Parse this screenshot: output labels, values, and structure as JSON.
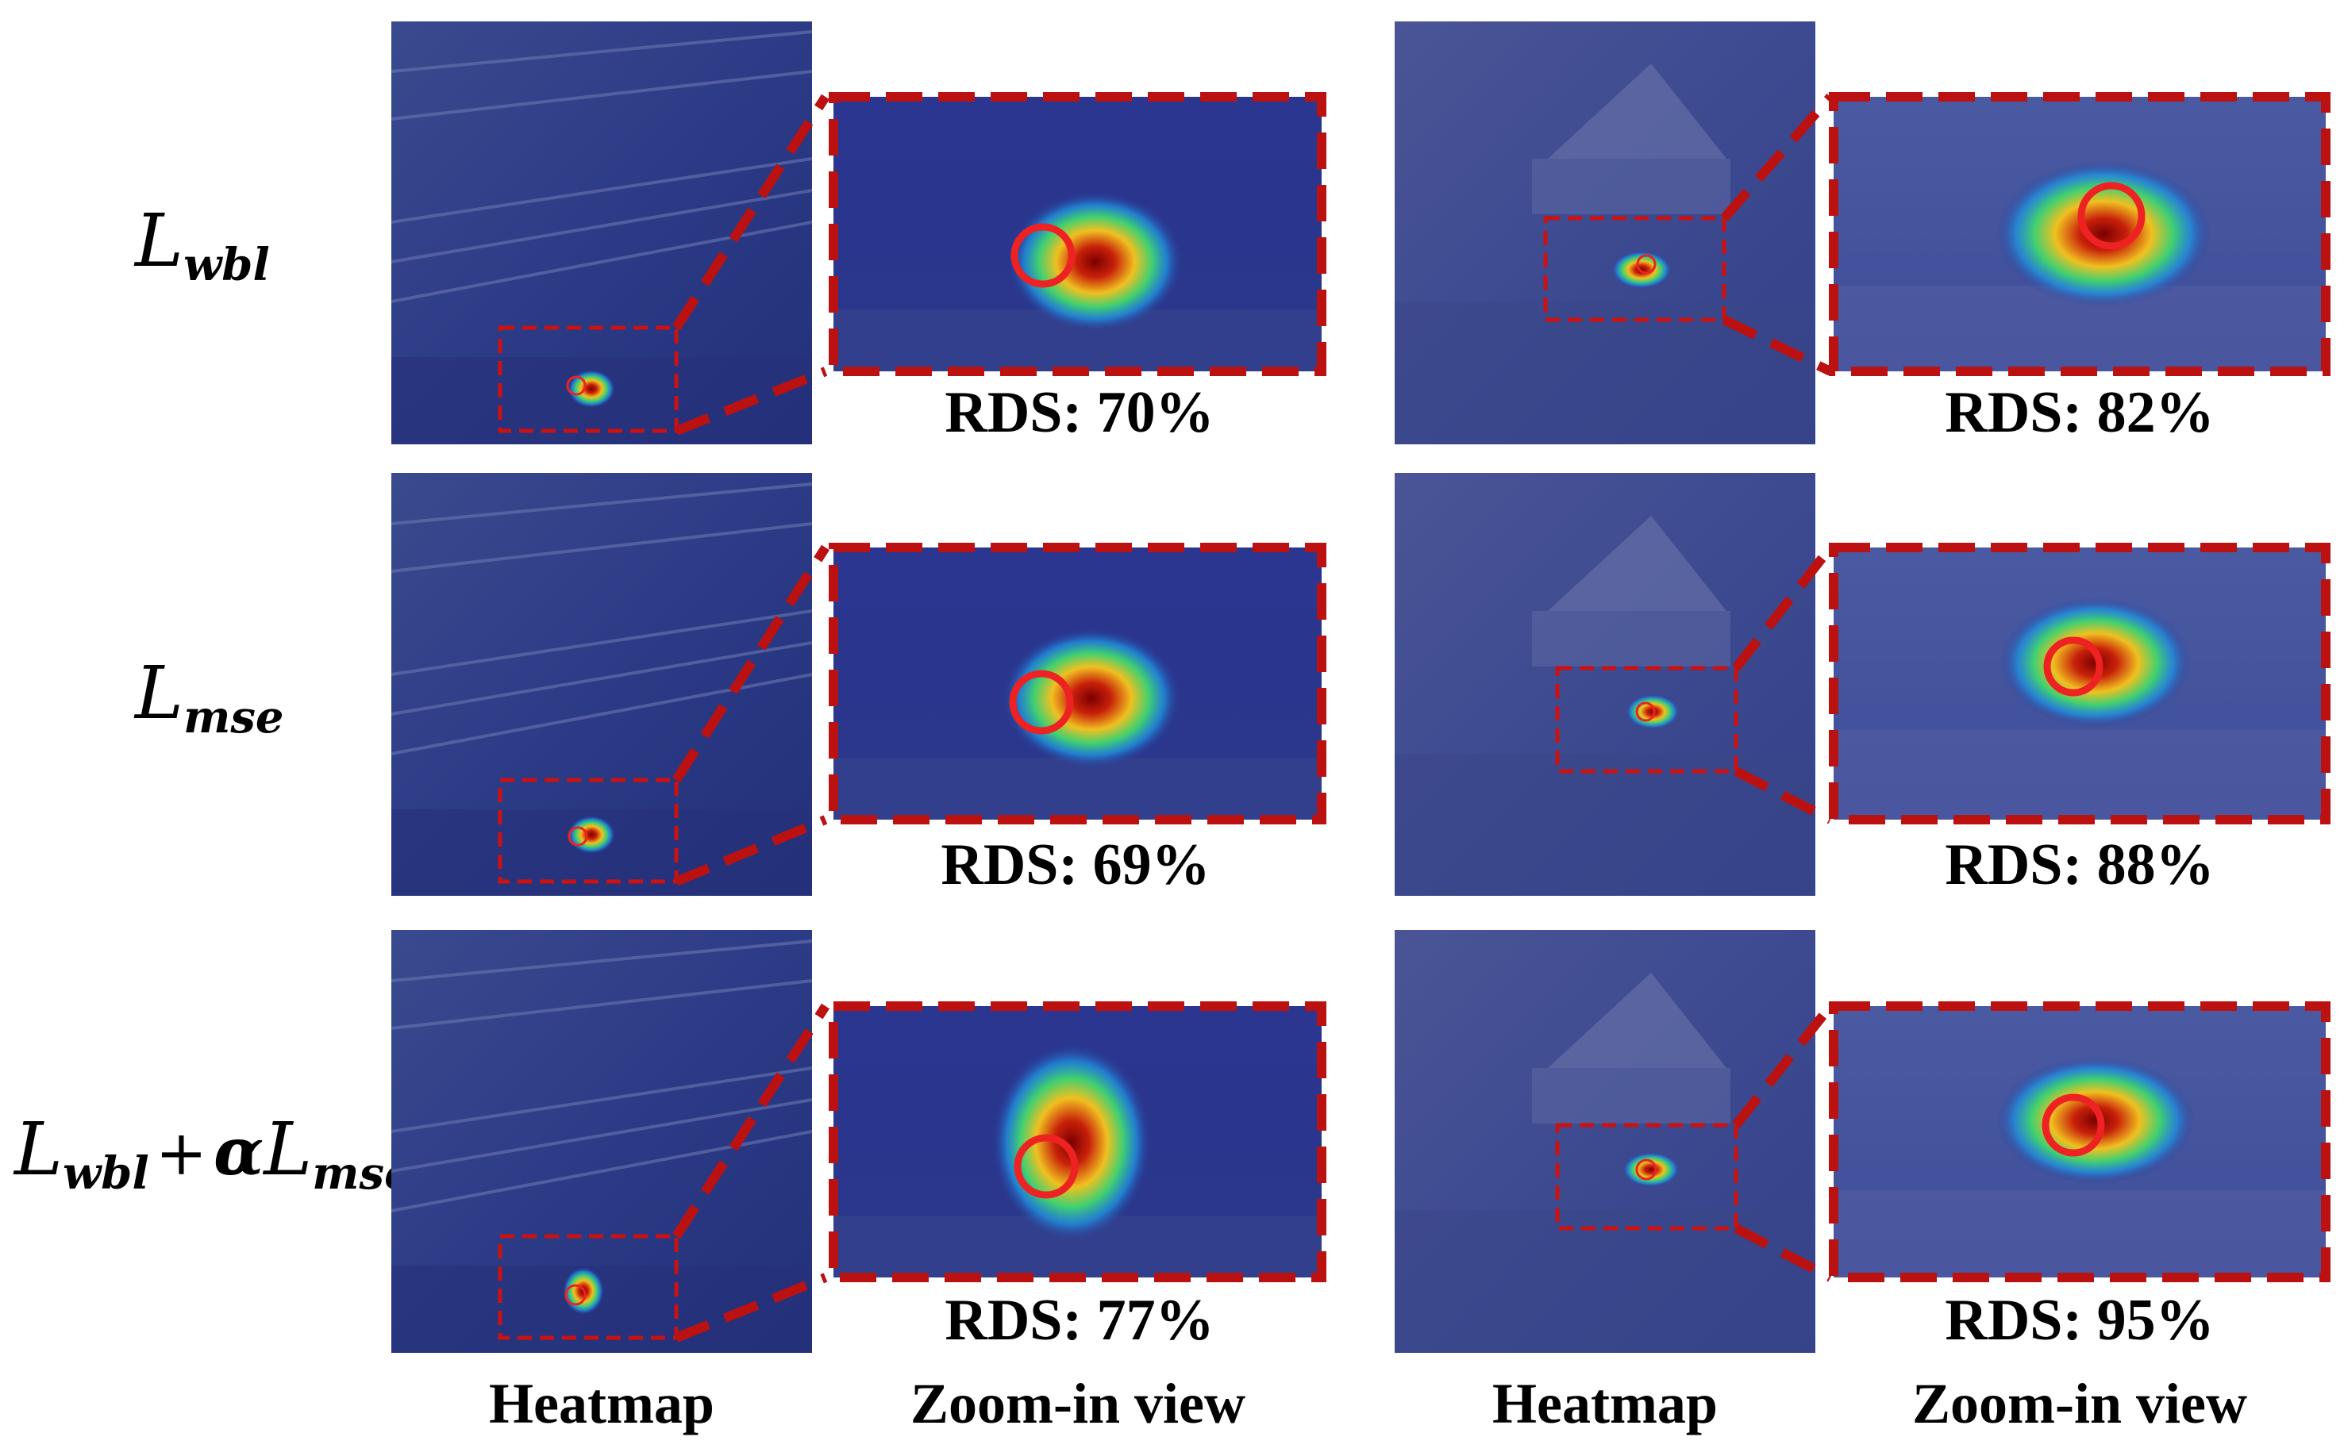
{
  "rows": [
    {
      "label": {
        "main": "L",
        "sub": "wbl"
      },
      "rds_left": "RDS: 70%",
      "rds_right": "RDS: 82%"
    },
    {
      "label": {
        "main": "L",
        "sub": "mse"
      },
      "rds_left": "RDS: 69%",
      "rds_right": "RDS: 88%"
    },
    {
      "label": {
        "main1": "L",
        "sub1": "wbl",
        "op": "+",
        "alpha": "α",
        "main2": "L",
        "sub2": "mse"
      },
      "rds_left": "RDS: 77%",
      "rds_right": "RDS: 95%"
    }
  ],
  "columns": {
    "left_heatmap": "Heatmap",
    "left_zoom": "Zoom-in view",
    "right_heatmap": "Heatmap",
    "right_zoom": "Zoom-in view"
  },
  "colors": {
    "background_overlay": "#2a3a8c",
    "box_dashed": "#cc1111",
    "circle": "#ee2222"
  }
}
